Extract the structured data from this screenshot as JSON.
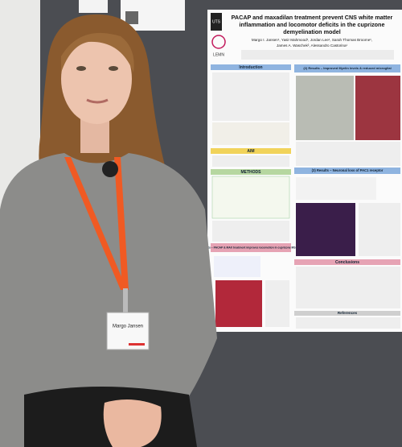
{
  "poster": {
    "logos": [
      "UTS",
      "LEMN"
    ],
    "title_lines": [
      "PACAP and maxadilan treatment prevent CNS white matter",
      "inflammation and locomotor deficits in the cuprizone",
      "demyelination model"
    ],
    "authors_lines": [
      "Margo I. Jansen¹, Yasir Mahmood¹, Jordan Lee¹, Sarah Thomas Broome¹,",
      "James A. Waschek², Alessandro Castorina¹"
    ],
    "sections": {
      "introduction": "Introduction",
      "aim": "AIM",
      "methods": "METHODS",
      "results_1": "(i) Results – PACAP & MAX treatment improves locomotion in cuprizone MS model",
      "results_2": "(2) Results – Improved Myelin levels & reduced microglial",
      "results_3": "(3) Results – Neuronal loss of PAC1 receptor",
      "conclusions": "Conclusions",
      "references": "References"
    }
  },
  "badge": {
    "name": "Margo Jansen"
  }
}
